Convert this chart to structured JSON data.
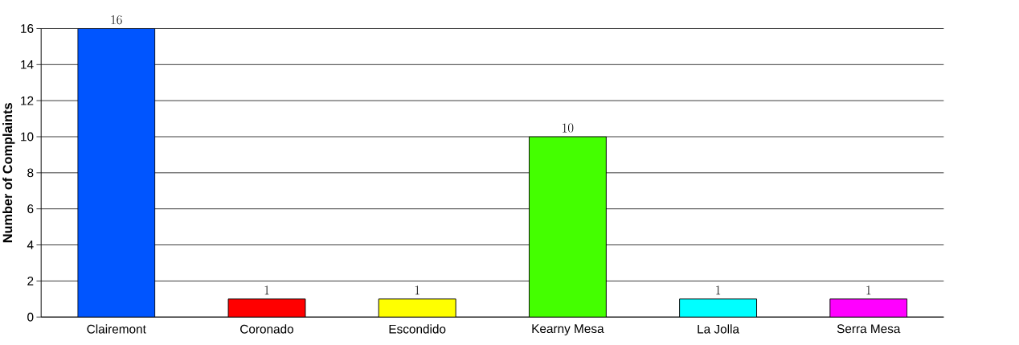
{
  "chart_data": {
    "type": "bar",
    "ylabel": "Number of Complaints",
    "categories": [
      "Clairemont",
      "Coronado",
      "Escondido",
      "Kearny Mesa",
      "La Jolla",
      "Serra Mesa"
    ],
    "values": [
      16,
      1,
      1,
      10,
      1,
      1
    ],
    "colors": [
      "#0055ff",
      "#ff0000",
      "#ffff00",
      "#44ff00",
      "#00ffff",
      "#ff00ff"
    ],
    "ylim": [
      0,
      16
    ],
    "yticks": [
      0,
      2,
      4,
      6,
      8,
      10,
      12,
      14,
      16
    ],
    "grid": "y",
    "data_labels": true
  }
}
